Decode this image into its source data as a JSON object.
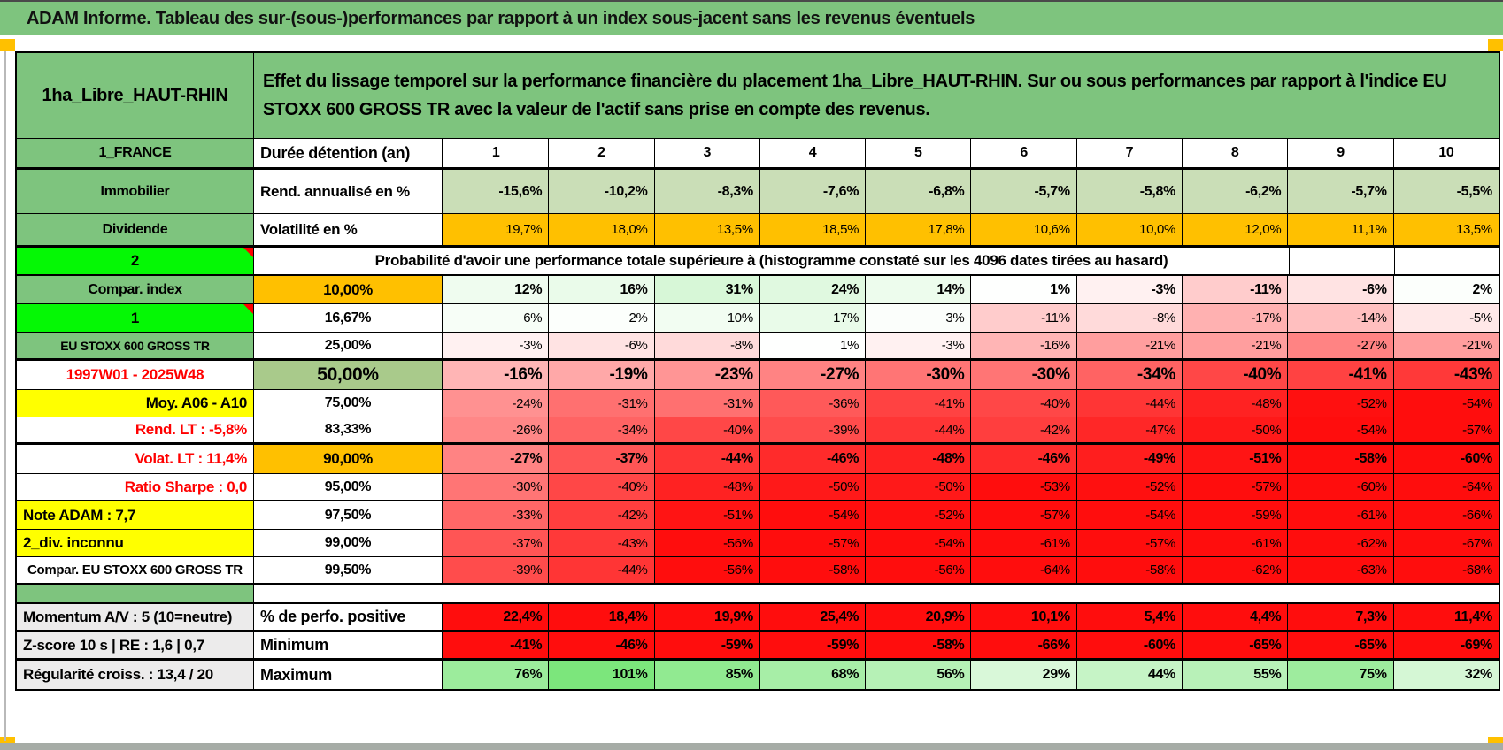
{
  "title": "ADAM Informe. Tableau des sur-(sous-)performances par rapport à un index sous-jacent sans les revenus éventuels",
  "header": {
    "asset_name": "1ha_Libre_HAUT-RHIN",
    "description": "Effet du lissage temporel sur la performance financière du placement 1ha_Libre_HAUT-RHIN. Sur ou sous performances par rapport à l'indice EU STOXX 600 GROSS TR avec la valeur de l'actif sans prise en compte des revenus."
  },
  "colors": {
    "green": "#7EC47E",
    "bright_green": "#05F805",
    "orange": "#FFC000",
    "yellow": "#FFFF00",
    "sage": "#A9CA8B",
    "rend_green": "#CADEB7",
    "flat_red": "#FF0D0D",
    "red_text": "#FF0000",
    "flag_red": "#FF0000",
    "gray_label": "#ECEBEB",
    "bottom_bar": "#A6ACA6"
  },
  "table": {
    "columns": [
      "1",
      "2",
      "3",
      "4",
      "5",
      "6",
      "7",
      "8",
      "9",
      "10"
    ],
    "rows": [
      {
        "name": "duree-detention",
        "cls": "h35 tb3",
        "label": "1_FRANCE",
        "labelCls": "lab-green",
        "sub": "Durée détention (an)",
        "subCls": "sub-left f18",
        "values": [
          "1",
          "2",
          "3",
          "4",
          "5",
          "6",
          "7",
          "8",
          "9",
          "10"
        ],
        "cellCls": "bold f18 center",
        "fill": "none"
      },
      {
        "name": "rendement-annualise",
        "cls": "h50",
        "label": "Immobilier",
        "labelCls": "lab-green",
        "sub": "Rend. annualisé en %",
        "subCls": "sub-left",
        "values": [
          "-15,6%",
          "-10,2%",
          "-8,3%",
          "-7,6%",
          "-6,8%",
          "-5,7%",
          "-5,8%",
          "-6,2%",
          "-5,7%",
          "-5,5%"
        ],
        "cellCls": "bold",
        "fill": "sage"
      },
      {
        "name": "volatilite",
        "cls": "h38 tb3",
        "label": "Dividende",
        "labelCls": "lab-green",
        "sub": "Volatilité en %",
        "subCls": "sub-left",
        "values": [
          "19,7%",
          "18,0%",
          "13,5%",
          "18,5%",
          "17,8%",
          "10,6%",
          "10,0%",
          "12,0%",
          "11,1%",
          "13,5%"
        ],
        "cellCls": "",
        "fill": "orange"
      },
      {
        "name": "probabilite-header",
        "cls": "h32 tb2",
        "label": "2",
        "labelCls": "lab-bright flag",
        "span": "Probabilité d'avoir une performance totale supérieure à (histogramme constaté sur les 4096 dates tirées au hasard)",
        "tailEmpty": 2
      },
      {
        "name": "quantile-10",
        "cls": "h32",
        "label": "Compar. index",
        "labelCls": "lab-green",
        "sub": "10,00%",
        "subCls": "sub-orange",
        "values": [
          12,
          16,
          31,
          24,
          14,
          1,
          -3,
          -11,
          -6,
          2
        ],
        "cellCls": "bold",
        "fill": "auto"
      },
      {
        "name": "quantile-16-67",
        "cls": "h32",
        "label": "1",
        "labelCls": "lab-bright flag",
        "sub": "16,67%",
        "subCls": "sub-c",
        "values": [
          6,
          2,
          10,
          17,
          3,
          -11,
          -8,
          -17,
          -14,
          -5
        ],
        "cellCls": "",
        "fill": "auto"
      },
      {
        "name": "quantile-25",
        "cls": "h32 tb3",
        "label": "EU STOXX 600 GROSS TR",
        "labelCls": "lab-green small",
        "sub": "25,00%",
        "subCls": "sub-c",
        "values": [
          -3,
          -6,
          -8,
          1,
          -3,
          -16,
          -21,
          -21,
          -27,
          -21
        ],
        "cellCls": "",
        "fill": "auto"
      },
      {
        "name": "quantile-50",
        "cls": "h33",
        "label": "1997W01 - 2025W48",
        "labelCls": "lab-redc",
        "sub": "50,00%",
        "subCls": "sub-sage",
        "values": [
          -16,
          -19,
          -23,
          -27,
          -30,
          -30,
          -34,
          -40,
          -41,
          -43
        ],
        "cellCls": "bold big",
        "fill": "auto"
      },
      {
        "name": "quantile-75",
        "cls": "h31",
        "label": "Moy. A06 - A10",
        "labelCls": "lab-yel-r",
        "sub": "75,00%",
        "subCls": "sub-c",
        "values": [
          -24,
          -31,
          -31,
          -36,
          -41,
          -40,
          -44,
          -48,
          -52,
          -54
        ],
        "cellCls": "",
        "fill": "auto"
      },
      {
        "name": "quantile-83-33",
        "cls": "h31 tb3",
        "label": "Rend. LT :   -5,8%",
        "labelCls": "lab-red-r",
        "sub": "83,33%",
        "subCls": "sub-c",
        "values": [
          -26,
          -34,
          -40,
          -39,
          -44,
          -42,
          -47,
          -50,
          -54,
          -57
        ],
        "cellCls": "",
        "fill": "auto"
      },
      {
        "name": "quantile-90",
        "cls": "h33",
        "label": "Volat. LT :   11,4%",
        "labelCls": "lab-red-r",
        "sub": "90,00%",
        "subCls": "sub-orange",
        "values": [
          -27,
          -37,
          -44,
          -46,
          -48,
          -46,
          -49,
          -51,
          -58,
          -60
        ],
        "cellCls": "bold",
        "fill": "auto"
      },
      {
        "name": "quantile-95",
        "cls": "h31 tb2",
        "label": "Ratio Sharpe :   0,0",
        "labelCls": "lab-red-r",
        "sub": "95,00%",
        "subCls": "sub-c",
        "values": [
          -30,
          -40,
          -48,
          -50,
          -50,
          -53,
          -52,
          -57,
          -60,
          -64
        ],
        "cellCls": "",
        "fill": "auto"
      },
      {
        "name": "quantile-97-5",
        "cls": "h32",
        "label": "Note ADAM : 7,7",
        "labelCls": "lab-yel-l",
        "sub": "97,50%",
        "subCls": "sub-c",
        "values": [
          -33,
          -42,
          -51,
          -54,
          -52,
          -57,
          -54,
          -59,
          -61,
          -66
        ],
        "cellCls": "",
        "fill": "auto"
      },
      {
        "name": "quantile-99",
        "cls": "h31",
        "label": "2_div. inconnu",
        "labelCls": "lab-yel-l",
        "sub": "99,00%",
        "subCls": "sub-c",
        "values": [
          -37,
          -43,
          -56,
          -57,
          -54,
          -61,
          -57,
          -61,
          -62,
          -67
        ],
        "cellCls": "",
        "fill": "auto"
      },
      {
        "name": "quantile-99-5",
        "cls": "h32 tb3",
        "label": "Compar. EU STOXX 600 GROSS TR",
        "labelCls": "lab-wh-l",
        "sub": "99,50%",
        "subCls": "sub-c",
        "values": [
          -39,
          -44,
          -56,
          -58,
          -56,
          -64,
          -58,
          -62,
          -63,
          -68
        ],
        "cellCls": "",
        "fill": "auto"
      },
      {
        "name": "spacer-row",
        "cls": "gaprow tb2",
        "label": "",
        "gap": true
      },
      {
        "name": "perfo-positive",
        "cls": "h32 tb3",
        "label": "Momentum A/V : 5 (10=neutre)",
        "labelCls": "lab-gray",
        "sub": "% de perfo. positive",
        "subCls": "sub-left f18",
        "values": [
          "22,4%",
          "18,4%",
          "19,9%",
          "25,4%",
          "20,9%",
          "10,1%",
          "5,4%",
          "4,4%",
          "7,3%",
          "11,4%"
        ],
        "cellCls": "bold",
        "fill": "flat-red"
      },
      {
        "name": "minimum",
        "cls": "h32 tb3",
        "label": "Z-score 10 s | RE : 1,6 | 0,7",
        "labelCls": "lab-gray",
        "sub": "Minimum",
        "subCls": "sub-left f18",
        "values": [
          -41,
          -46,
          -59,
          -59,
          -58,
          -66,
          -60,
          -65,
          -65,
          -69
        ],
        "cellCls": "bold",
        "fill": "flat-red"
      },
      {
        "name": "maximum",
        "cls": "h32",
        "label": "Régularité croiss. : 13,4 / 20",
        "labelCls": "lab-gray",
        "sub": "Maximum",
        "subCls": "sub-left f18",
        "values": [
          76,
          101,
          85,
          68,
          56,
          29,
          44,
          55,
          75,
          32
        ],
        "cellCls": "bold",
        "fill": "auto"
      }
    ]
  }
}
